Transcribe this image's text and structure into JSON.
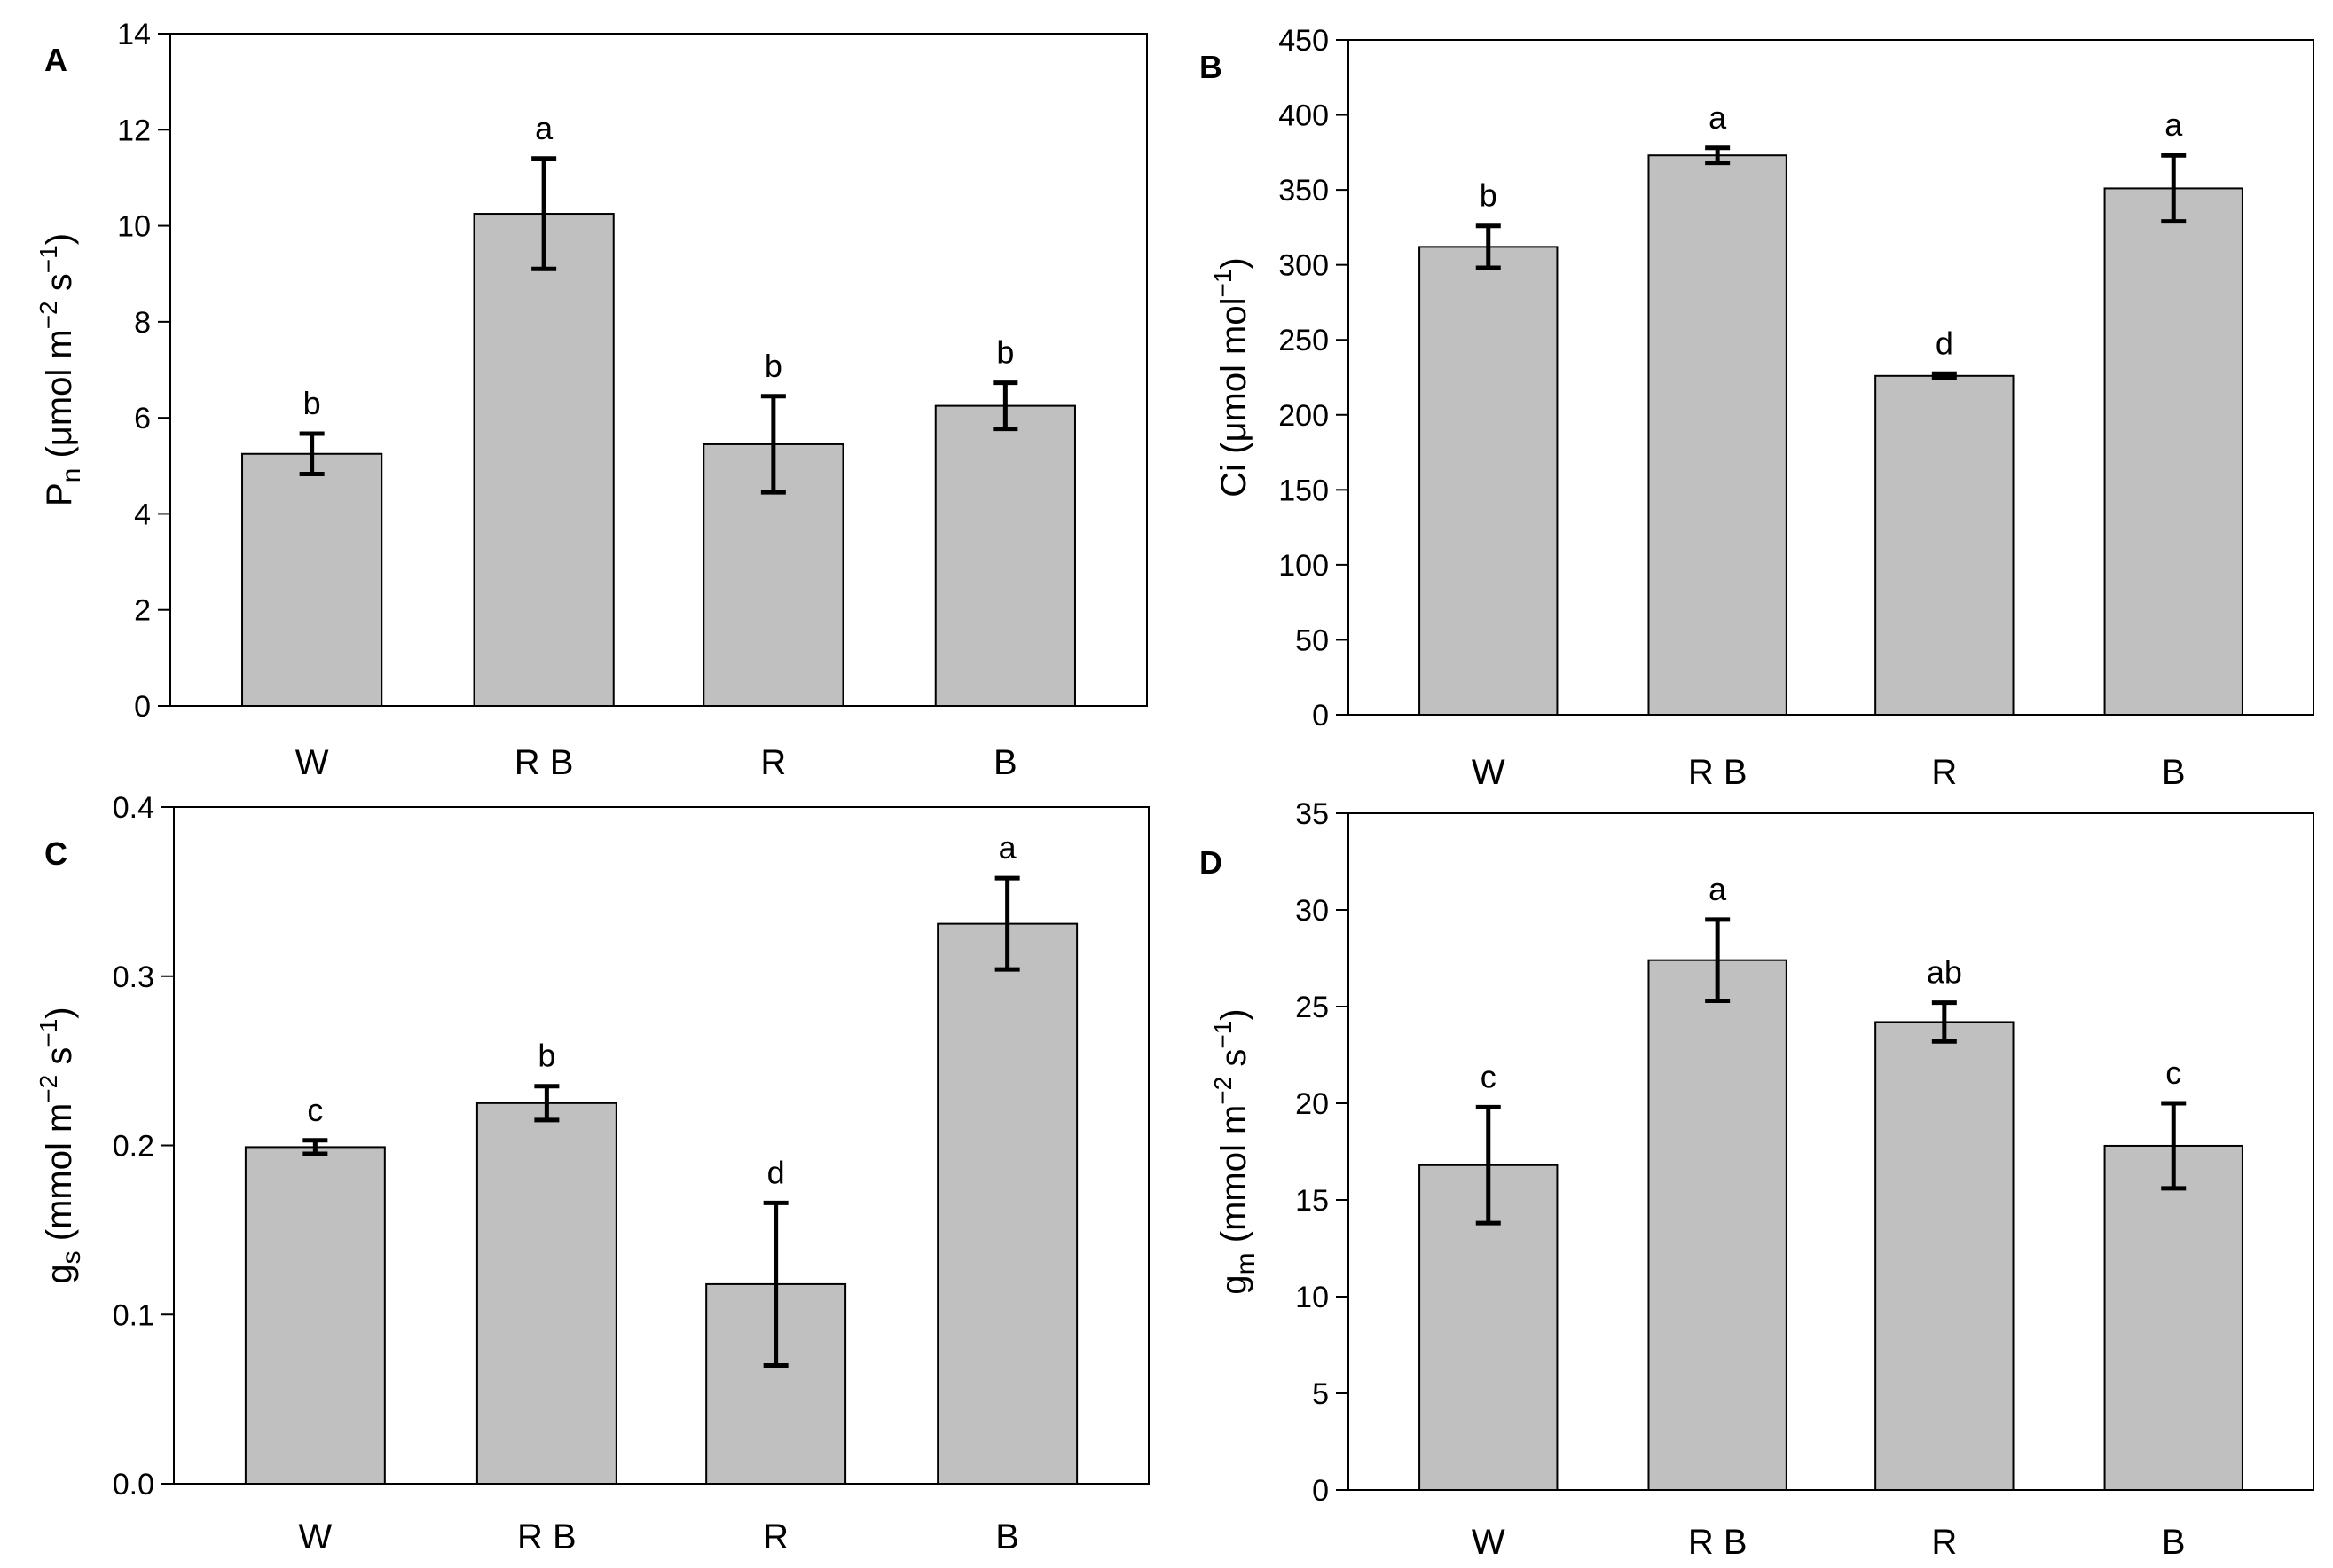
{
  "chart_data": [
    {
      "type": "bar",
      "panel": "A",
      "categories": [
        "W",
        "R B",
        "R",
        "B"
      ],
      "values": [
        5.25,
        10.25,
        5.45,
        6.25
      ],
      "errors": [
        0.42,
        1.15,
        1.0,
        0.48
      ],
      "significance": [
        "b",
        "a",
        "b",
        "b"
      ],
      "ylim": [
        0,
        14
      ],
      "yticks": [
        0,
        2,
        4,
        6,
        8,
        10,
        12,
        14
      ],
      "ytick_labels": [
        "0",
        "2",
        "4",
        "6",
        "8",
        "10",
        "12",
        "14"
      ],
      "ylabel": {
        "main": "P",
        "sub": "n",
        "unit": " (μmol m",
        "exp1": "−2",
        "mid": " s",
        "exp2": "−1",
        "close": ")"
      },
      "bar_color": "#c0c0c0",
      "grid": false
    },
    {
      "type": "bar",
      "panel": "B",
      "categories": [
        "W",
        "R B",
        "R",
        "B"
      ],
      "values": [
        312,
        373,
        226,
        351
      ],
      "errors": [
        14,
        5,
        1.5,
        22
      ],
      "significance": [
        "b",
        "a",
        "d",
        "a"
      ],
      "ylim": [
        0,
        450
      ],
      "yticks": [
        0,
        50,
        100,
        150,
        200,
        250,
        300,
        350,
        400,
        450
      ],
      "ytick_labels": [
        "0",
        "50",
        "100",
        "150",
        "200",
        "250",
        "300",
        "350",
        "400",
        "450"
      ],
      "ylabel": {
        "main": "Ci",
        "sub": "",
        "unit": " (μmol mol",
        "exp1": "−1",
        "mid": "",
        "exp2": "",
        "close": ")"
      },
      "bar_color": "#c0c0c0",
      "grid": false
    },
    {
      "type": "bar",
      "panel": "C",
      "categories": [
        "W",
        "R B",
        "R",
        "B"
      ],
      "values": [
        0.199,
        0.225,
        0.118,
        0.331
      ],
      "errors": [
        0.004,
        0.01,
        0.048,
        0.027
      ],
      "significance": [
        "c",
        "b",
        "d",
        "a"
      ],
      "ylim": [
        0,
        0.4
      ],
      "yticks": [
        0,
        0.1,
        0.2,
        0.3,
        0.4
      ],
      "ytick_labels": [
        "0.0",
        "0.1",
        "0.2",
        "0.3",
        "0.4"
      ],
      "ylabel": {
        "main": "g",
        "sub": "s",
        "unit": " (mmol m",
        "exp1": "−2",
        "mid": " s",
        "exp2": "−1",
        "close": ")"
      },
      "bar_color": "#c0c0c0",
      "grid": false
    },
    {
      "type": "bar",
      "panel": "D",
      "categories": [
        "W",
        "R B",
        "R",
        "B"
      ],
      "values": [
        16.8,
        27.4,
        24.2,
        17.8
      ],
      "errors": [
        3.0,
        2.1,
        1.0,
        2.2
      ],
      "significance": [
        "c",
        "a",
        "ab",
        "c"
      ],
      "ylim": [
        0,
        35
      ],
      "yticks": [
        0,
        5,
        10,
        15,
        20,
        25,
        30,
        35
      ],
      "ytick_labels": [
        "0",
        "5",
        "10",
        "15",
        "20",
        "25",
        "30",
        "35"
      ],
      "ylabel": {
        "main": "g",
        "sub": "m",
        "unit": " (mmol m",
        "exp1": "−2",
        "mid": " s",
        "exp2": "−1",
        "close": ")"
      },
      "bar_color": "#c0c0c0",
      "grid": false
    }
  ]
}
